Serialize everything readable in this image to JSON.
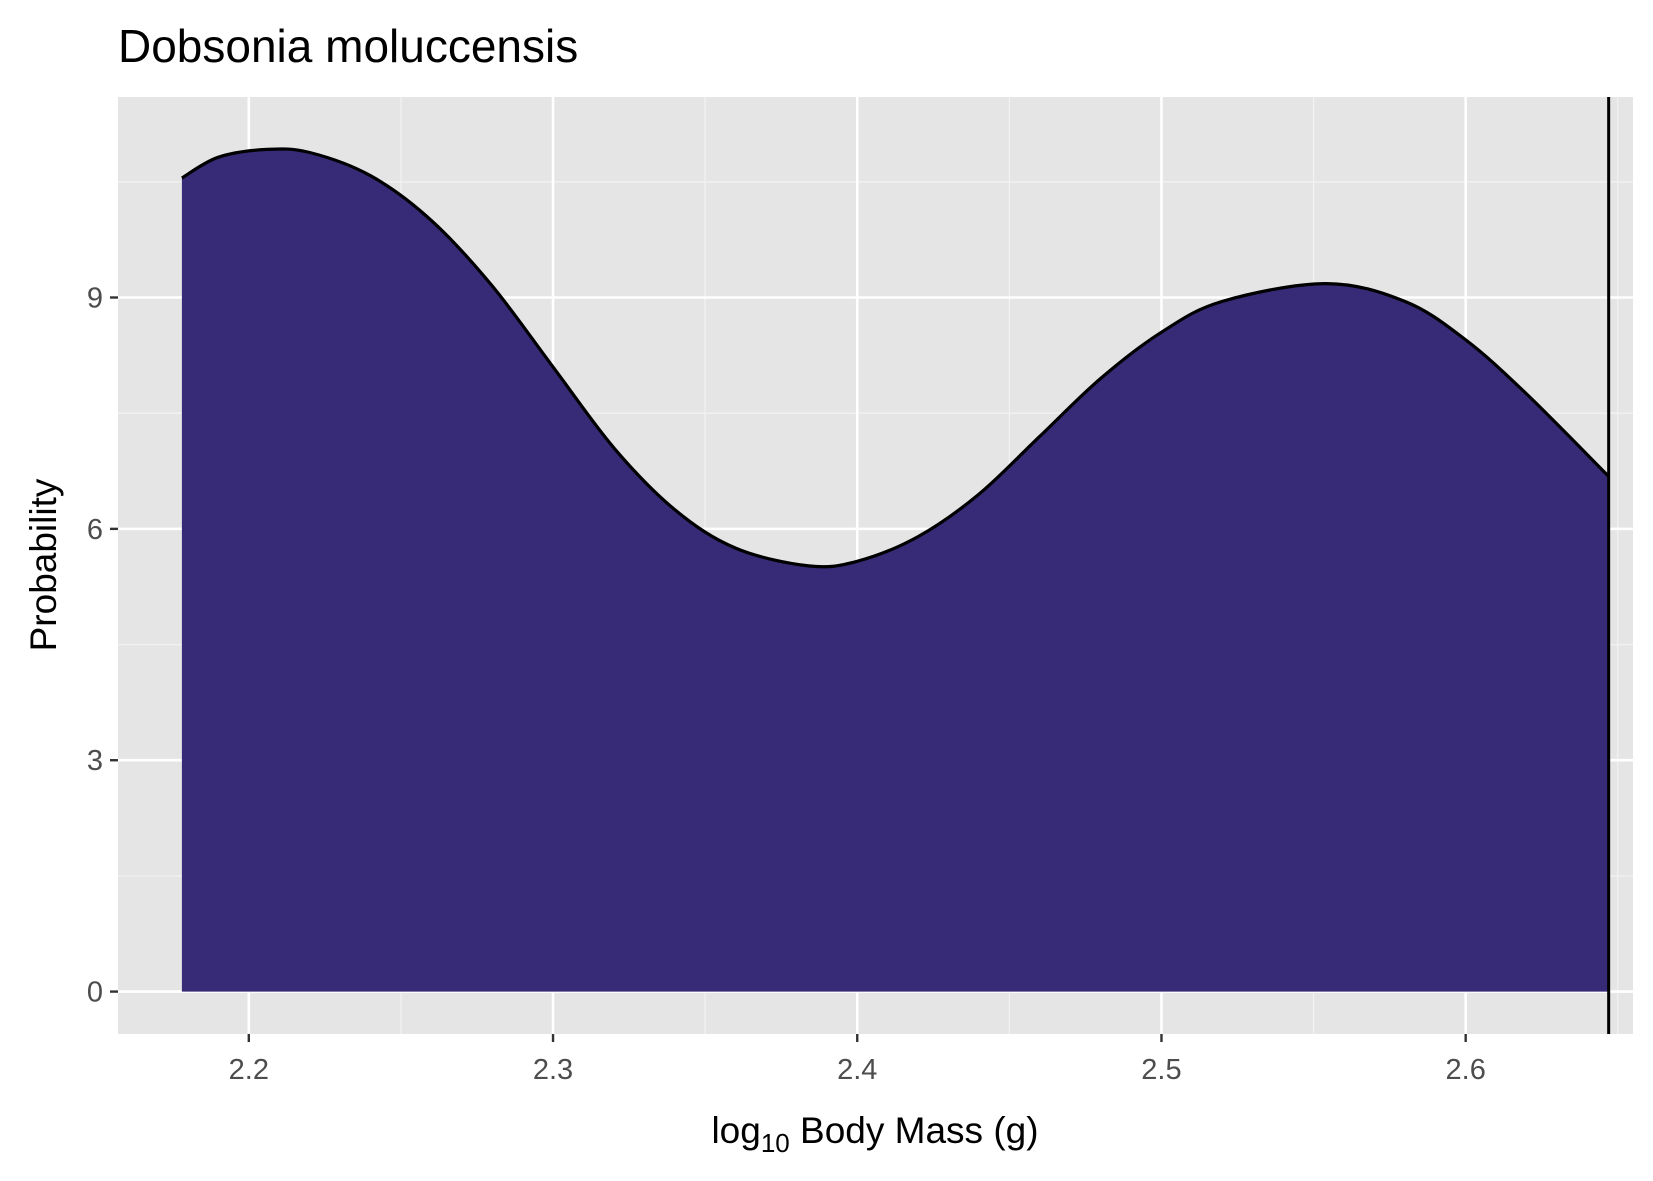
{
  "chart_data": {
    "type": "area",
    "title": "Dobsonia moluccensis",
    "xlabel": {
      "base": "log",
      "subscript": "10",
      "rest": " Body Mass (g)"
    },
    "ylabel": "Probability",
    "xlim": [
      2.157,
      2.655
    ],
    "ylim": [
      -0.55,
      11.6
    ],
    "x_ticks": [
      {
        "value": 2.2,
        "label": "2.2"
      },
      {
        "value": 2.3,
        "label": "2.3"
      },
      {
        "value": 2.4,
        "label": "2.4"
      },
      {
        "value": 2.5,
        "label": "2.5"
      },
      {
        "value": 2.6,
        "label": "2.6"
      }
    ],
    "y_ticks": [
      {
        "value": 0,
        "label": "0"
      },
      {
        "value": 3,
        "label": "3"
      },
      {
        "value": 6,
        "label": "6"
      },
      {
        "value": 9,
        "label": "9"
      }
    ],
    "x_minor_breaks": [
      2.25,
      2.35,
      2.45,
      2.55,
      2.65
    ],
    "y_minor_breaks": [
      1.5,
      4.5,
      7.5,
      10.5
    ],
    "grid": true,
    "series": [
      {
        "fill": "#372a76",
        "stroke": "#000000",
        "x": [
          2.178,
          2.19,
          2.206,
          2.22,
          2.24,
          2.26,
          2.28,
          2.3,
          2.32,
          2.34,
          2.36,
          2.384,
          2.4,
          2.42,
          2.44,
          2.46,
          2.48,
          2.5,
          2.52,
          2.554,
          2.58,
          2.6,
          2.62,
          2.647
        ],
        "y": [
          10.55,
          10.82,
          10.92,
          10.88,
          10.58,
          10.0,
          9.15,
          8.1,
          7.05,
          6.25,
          5.75,
          5.52,
          5.58,
          5.9,
          6.45,
          7.2,
          7.95,
          8.55,
          8.95,
          9.18,
          8.95,
          8.45,
          7.75,
          6.68
        ]
      }
    ],
    "vline": {
      "x": 2.647,
      "color": "#000000"
    }
  }
}
